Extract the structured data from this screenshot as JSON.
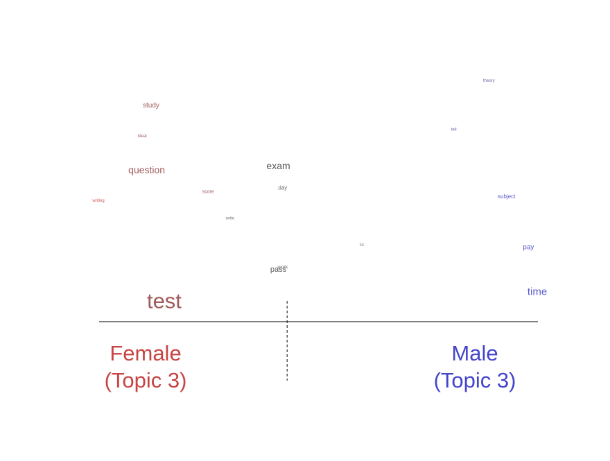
{
  "chart_data": {
    "type": "scatter",
    "title": "",
    "xlabel": "",
    "ylabel": "",
    "xlim": [
      0,
      1
    ],
    "ylim": [
      0,
      1
    ],
    "reference_x": 0.43,
    "grid": false,
    "colors": {
      "female": "#c84444",
      "male": "#4444cc",
      "neutral": "#555555"
    },
    "points": [
      {
        "word": "study",
        "x": 0.12,
        "y": 0.88,
        "size": 10,
        "color": "#a05a5a"
      },
      {
        "word": "ideal",
        "x": 0.1,
        "y": 0.74,
        "size": 6,
        "color": "#a05a5a"
      },
      {
        "word": "question",
        "x": 0.11,
        "y": 0.59,
        "size": 14,
        "color": "#a05a5a"
      },
      {
        "word": "score",
        "x": 0.25,
        "y": 0.49,
        "size": 7,
        "color": "#a05a5a"
      },
      {
        "word": "writing",
        "x": 0.0,
        "y": 0.45,
        "size": 6,
        "color": "#cc5555"
      },
      {
        "word": "write",
        "x": 0.3,
        "y": 0.37,
        "size": 6,
        "color": "#777777"
      },
      {
        "word": "exam",
        "x": 0.41,
        "y": 0.61,
        "size": 14,
        "color": "#555555"
      },
      {
        "word": "day",
        "x": 0.42,
        "y": 0.51,
        "size": 8,
        "color": "#666666"
      },
      {
        "word": "work",
        "x": 0.42,
        "y": 0.15,
        "size": 7,
        "color": "#777777"
      },
      {
        "word": "pass",
        "x": 0.41,
        "y": 0.14,
        "size": 11,
        "color": "#555555"
      },
      {
        "word": "test",
        "x": 0.15,
        "y": 0.0,
        "size": 31,
        "color": "#a05a5a"
      },
      {
        "word": "lot",
        "x": 0.6,
        "y": 0.25,
        "size": 6,
        "color": "#888888"
      },
      {
        "word": "theory",
        "x": 0.89,
        "y": 0.99,
        "size": 6,
        "color": "#6666aa"
      },
      {
        "word": "tell",
        "x": 0.81,
        "y": 0.77,
        "size": 6,
        "color": "#6666aa"
      },
      {
        "word": "subject",
        "x": 0.93,
        "y": 0.47,
        "size": 8,
        "color": "#5a5acc"
      },
      {
        "word": "pay",
        "x": 0.98,
        "y": 0.24,
        "size": 10,
        "color": "#5a5acc"
      },
      {
        "word": "time",
        "x": 1.0,
        "y": 0.04,
        "size": 15,
        "color": "#5a5acc"
      }
    ]
  },
  "labels": {
    "female_line1": "Female",
    "female_line2": "(Topic 3)",
    "male_line1": "Male",
    "male_line2": "(Topic 3)"
  }
}
